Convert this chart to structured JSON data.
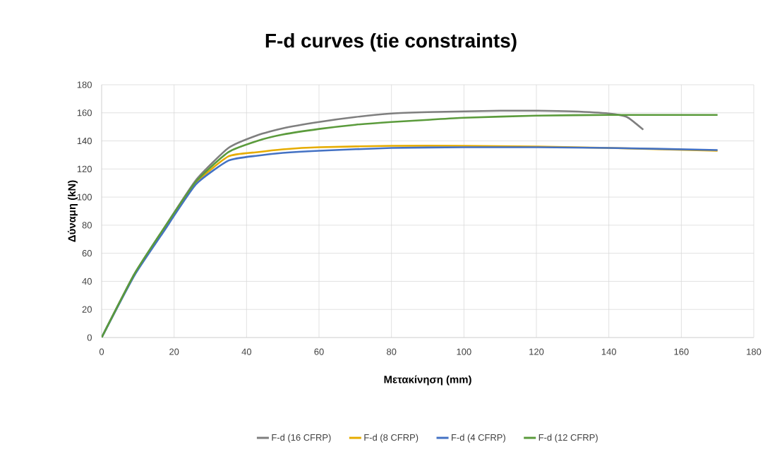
{
  "chart_data": {
    "type": "line",
    "title": "F-d curves (tie constraints)",
    "xlabel": "Μετακίνηση (mm)",
    "ylabel": "Δύναμη (kN)",
    "xlim": [
      0,
      180
    ],
    "ylim": [
      0,
      180
    ],
    "xticks": [
      0,
      20,
      40,
      60,
      80,
      100,
      120,
      140,
      160,
      180
    ],
    "yticks": [
      0,
      20,
      40,
      60,
      80,
      100,
      120,
      140,
      160,
      180
    ],
    "grid": true,
    "legend": "bottom",
    "marker": "none",
    "line_style": "solid",
    "series": [
      {
        "name": "F-d (16 CFRP)",
        "color": "#7f7f7f",
        "x": [
          0,
          9,
          17,
          26,
          35,
          43,
          50,
          60,
          70,
          80,
          90,
          100,
          110,
          120,
          130,
          140,
          145,
          149.5
        ],
        "values": [
          0,
          45,
          77,
          112,
          135,
          144,
          149,
          153.5,
          157,
          159.5,
          160.5,
          161,
          161.5,
          161.5,
          161,
          159.5,
          157,
          148
        ]
      },
      {
        "name": "F-d (8 CFRP)",
        "color": "#e6ac00",
        "x": [
          17,
          26,
          35,
          43,
          50,
          60,
          80,
          100,
          120,
          140,
          170
        ],
        "values": [
          76,
          110,
          129,
          132,
          134,
          135.5,
          136.5,
          136.5,
          136,
          135,
          133
        ]
      },
      {
        "name": "F-d (4 CFRP)",
        "color": "#4472c4",
        "x": [
          0,
          9,
          17,
          26,
          35,
          43,
          50,
          60,
          80,
          100,
          120,
          140,
          170
        ],
        "values": [
          0,
          44,
          75,
          109,
          126,
          129.5,
          131.5,
          133,
          135,
          135.5,
          135.5,
          135,
          133.5
        ]
      },
      {
        "name": "F-d (12 CFRP)",
        "color": "#5b9b3c",
        "x": [
          0,
          9,
          17,
          26,
          35,
          43,
          50,
          60,
          70,
          80,
          90,
          100,
          120,
          140,
          170
        ],
        "values": [
          0,
          45,
          77,
          111,
          132,
          140,
          144.5,
          148.5,
          151.5,
          153.5,
          155,
          156.5,
          158,
          158.5,
          158.5
        ]
      }
    ]
  }
}
